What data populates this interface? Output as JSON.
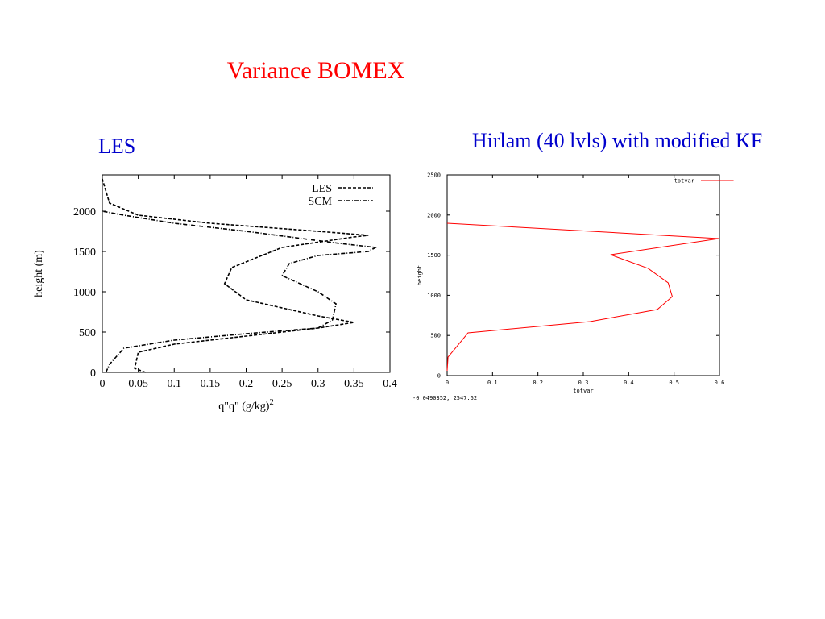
{
  "title": "Variance BOMEX",
  "chart_data": [
    {
      "type": "line",
      "title": "LES",
      "x_label": "q\"q\" (g/kg)",
      "x_label_sup": "2",
      "y_label": "height (m)",
      "xlim": [
        0,
        0.4
      ],
      "xticks": [
        0,
        0.05,
        0.1,
        0.15,
        0.2,
        0.25,
        0.3,
        0.35,
        0.4
      ],
      "ylim": [
        0,
        2450
      ],
      "yticks": [
        0,
        500,
        1000,
        1500,
        2000
      ],
      "legend": "upper right",
      "series": [
        {
          "name": "LES",
          "color": "#000000",
          "linestyle": "dashed",
          "x": [
            0.06,
            0.045,
            0.05,
            0.1,
            0.2,
            0.3,
            0.35,
            0.3,
            0.2,
            0.17,
            0.18,
            0.25,
            0.35,
            0.37,
            0.3,
            0.15,
            0.05,
            0.01,
            0.0
          ],
          "values": [
            0,
            50,
            250,
            350,
            450,
            550,
            620,
            700,
            900,
            1100,
            1300,
            1550,
            1680,
            1700,
            1750,
            1850,
            1950,
            2100,
            2400
          ]
        },
        {
          "name": "SCM",
          "color": "#000000",
          "linestyle": "dashdot",
          "x": [
            0.005,
            0.01,
            0.03,
            0.1,
            0.2,
            0.3,
            0.32,
            0.325,
            0.3,
            0.25,
            0.26,
            0.3,
            0.37,
            0.38,
            0.33,
            0.2,
            0.1,
            0.03,
            0.0
          ],
          "values": [
            0,
            100,
            300,
            400,
            480,
            550,
            650,
            850,
            1000,
            1200,
            1350,
            1450,
            1500,
            1550,
            1600,
            1750,
            1850,
            1950,
            2000
          ]
        }
      ]
    },
    {
      "type": "line",
      "title": "Hirlam (40 lvls) with modified KF",
      "x_label": "totvar",
      "y_label": "height",
      "footer": "-0.0490352,  2547.62",
      "xlim": [
        0,
        0.6
      ],
      "xticks": [
        0,
        0.1,
        0.2,
        0.3,
        0.4,
        0.5,
        0.6
      ],
      "ylim": [
        0,
        2500
      ],
      "yticks": [
        0,
        500,
        1000,
        1500,
        2000,
        2500
      ],
      "legend": "upper right",
      "series": [
        {
          "name": "totvar",
          "color": "#ff0000",
          "linestyle": "solid",
          "x": [
            0,
            0.002,
            0.024,
            0.046,
            0.315,
            0.463,
            0.496,
            0.487,
            0.443,
            0.36,
            0.6,
            0
          ],
          "values": [
            60,
            231,
            381,
            532,
            673,
            823,
            984,
            1155,
            1335,
            1506,
            1707,
            1898
          ]
        }
      ]
    }
  ]
}
